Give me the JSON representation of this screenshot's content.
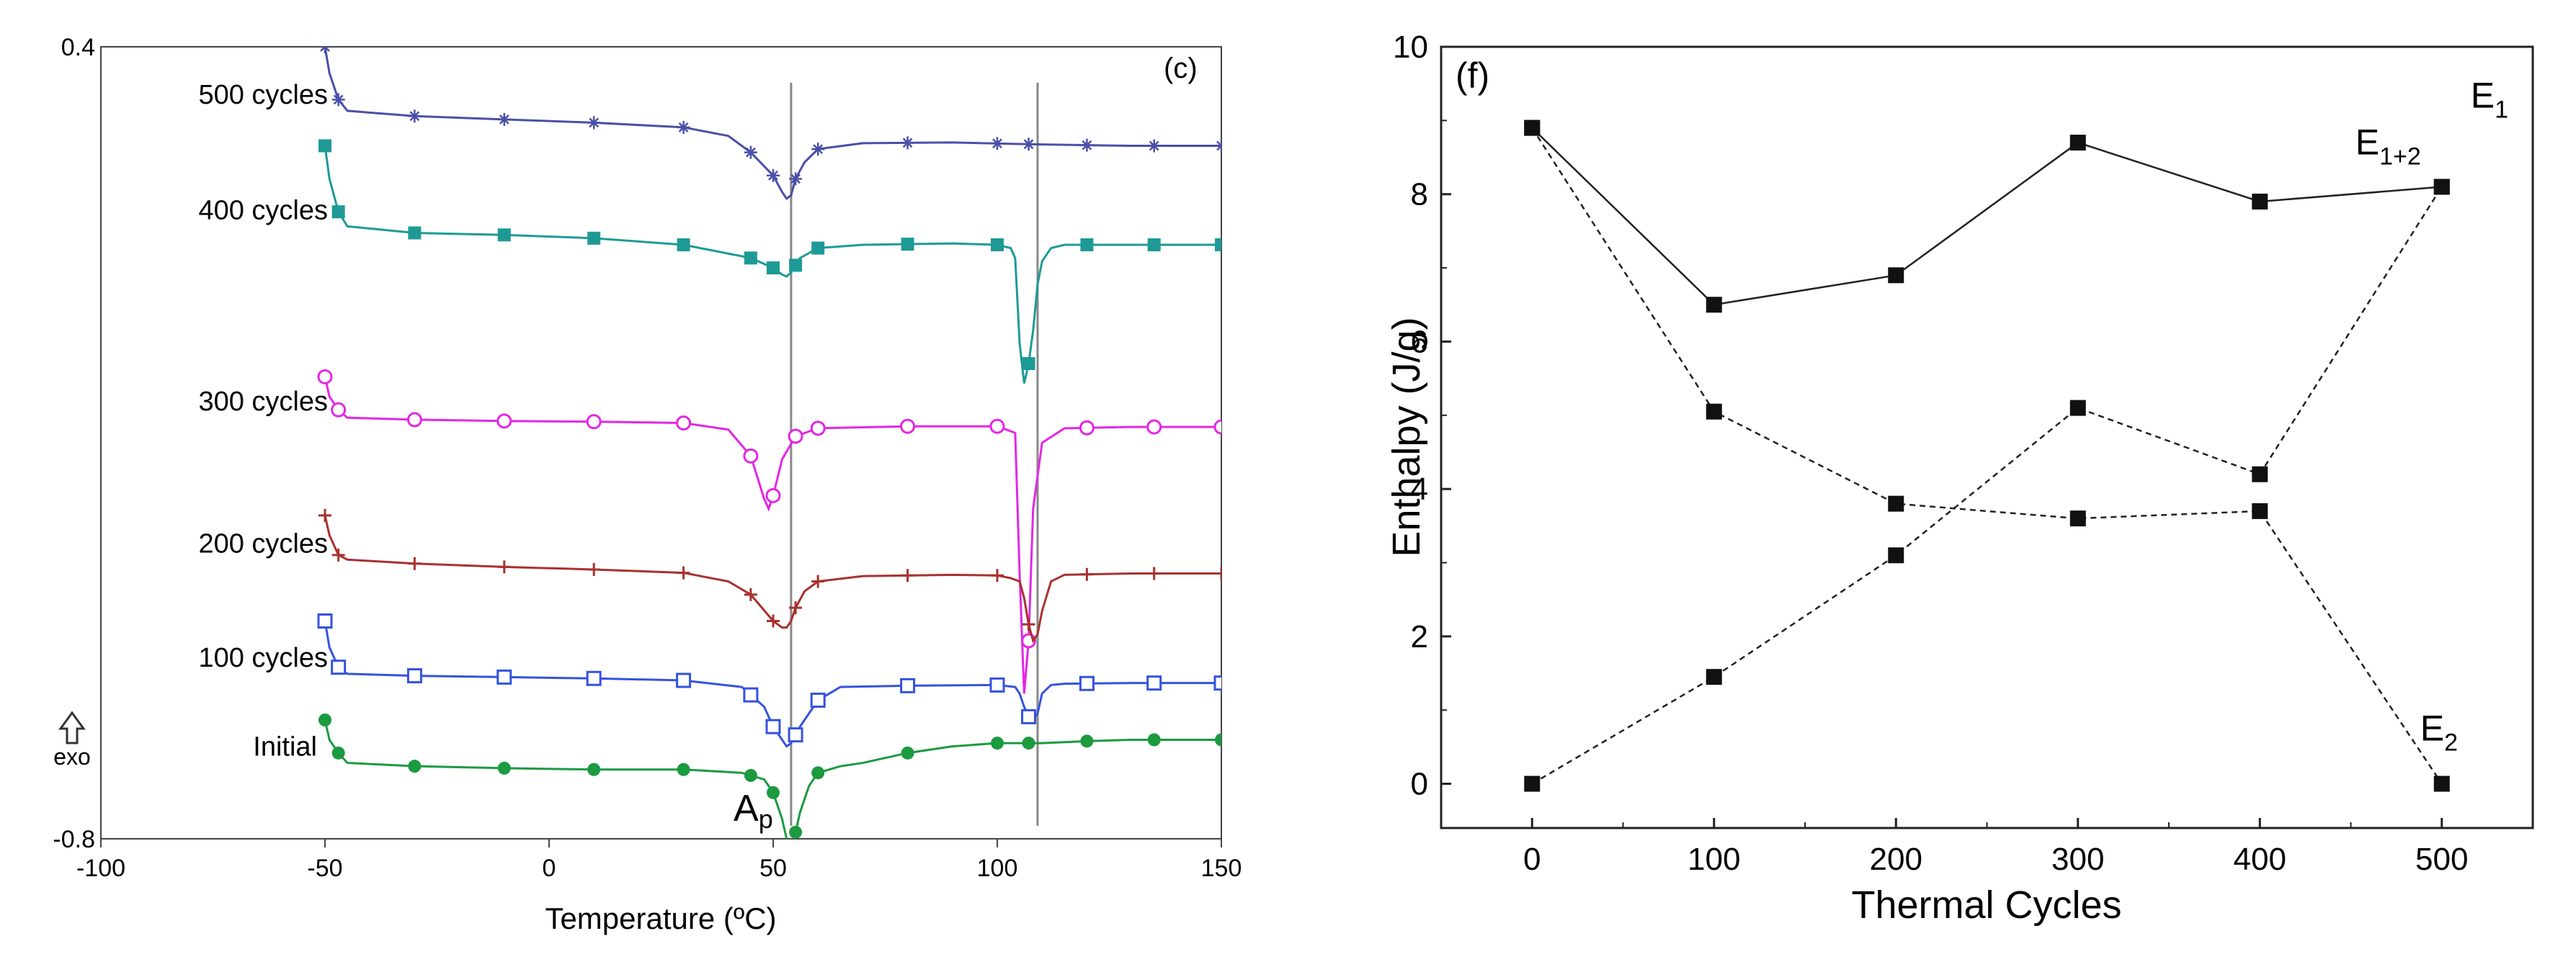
{
  "chart_data": [
    {
      "type": "line",
      "panel_label": "(c)",
      "xlabel": "Temperature (ºC)",
      "xlim": [
        -100,
        150
      ],
      "x_ticks": [
        "-100",
        "-50",
        "0",
        "50",
        "100",
        "150"
      ],
      "ylim": [
        -0.8,
        0.4
      ],
      "y_ticks": [
        "0.4",
        "-0.8"
      ],
      "exo_label": "exo",
      "peak_label": "A",
      "peak_sub": "p",
      "ref_lines_x": [
        54,
        109
      ],
      "series": [
        {
          "name": "500 cycles",
          "color": "#4a4fa8",
          "marker": "star",
          "x": [
            -50,
            -49,
            -47,
            -45,
            -30,
            -10,
            10,
            30,
            40,
            45,
            50,
            52,
            53,
            54,
            55,
            57,
            60,
            70,
            90,
            110,
            130,
            150
          ],
          "y": [
            0.4,
            0.36,
            0.32,
            0.303,
            0.295,
            0.29,
            0.285,
            0.278,
            0.265,
            0.24,
            0.205,
            0.18,
            0.17,
            0.175,
            0.2,
            0.225,
            0.245,
            0.254,
            0.255,
            0.252,
            0.25,
            0.25
          ]
        },
        {
          "name": "400 cycles",
          "color": "#1e9a96",
          "marker": "square-filled",
          "x": [
            -50,
            -49,
            -47,
            -45,
            -30,
            -10,
            10,
            30,
            45,
            50,
            52,
            53,
            54,
            56,
            60,
            70,
            90,
            100,
            103,
            104,
            105,
            106,
            107,
            108,
            109,
            110,
            112,
            115,
            130,
            150
          ],
          "y": [
            0.25,
            0.2,
            0.15,
            0.128,
            0.118,
            0.115,
            0.11,
            0.1,
            0.08,
            0.065,
            0.055,
            0.052,
            0.058,
            0.08,
            0.095,
            0.1,
            0.102,
            0.1,
            0.095,
            0.08,
            -0.05,
            -0.11,
            -0.08,
            -0.03,
            0.04,
            0.075,
            0.095,
            0.1,
            0.1,
            0.1
          ]
        },
        {
          "name": "300 cycles",
          "color": "#e327e3",
          "marker": "circle-open",
          "x": [
            -50,
            -49,
            -47,
            -45,
            -30,
            -10,
            10,
            30,
            40,
            45,
            48,
            49,
            50,
            52,
            55,
            60,
            80,
            100,
            104,
            105,
            106,
            107,
            108,
            110,
            115,
            130,
            150
          ],
          "y": [
            -0.1,
            -0.13,
            -0.15,
            -0.162,
            -0.165,
            -0.167,
            -0.168,
            -0.17,
            -0.18,
            -0.22,
            -0.285,
            -0.3,
            -0.28,
            -0.225,
            -0.19,
            -0.178,
            -0.175,
            -0.175,
            -0.185,
            -0.4,
            -0.58,
            -0.5,
            -0.3,
            -0.2,
            -0.178,
            -0.176,
            -0.176
          ]
        },
        {
          "name": "200 cycles",
          "color": "#a8312f",
          "marker": "cross",
          "x": [
            -50,
            -49,
            -47,
            -45,
            -30,
            -10,
            10,
            30,
            40,
            45,
            50,
            52,
            53,
            54,
            55,
            57,
            60,
            70,
            90,
            100,
            103,
            105,
            106,
            107,
            108,
            109,
            110,
            112,
            115,
            130,
            150
          ],
          "y": [
            -0.31,
            -0.34,
            -0.37,
            -0.377,
            -0.383,
            -0.388,
            -0.392,
            -0.397,
            -0.41,
            -0.43,
            -0.47,
            -0.48,
            -0.48,
            -0.47,
            -0.45,
            -0.425,
            -0.41,
            -0.402,
            -0.4,
            -0.401,
            -0.405,
            -0.41,
            -0.435,
            -0.475,
            -0.5,
            -0.49,
            -0.455,
            -0.41,
            -0.4,
            -0.398,
            -0.398
          ]
        },
        {
          "name": "100 cycles",
          "color": "#3552e0",
          "marker": "square-open",
          "x": [
            -50,
            -49,
            -47,
            -45,
            -30,
            -10,
            10,
            30,
            43,
            48,
            50,
            52,
            53,
            54,
            56,
            60,
            65,
            80,
            100,
            104,
            105,
            106,
            107,
            108,
            109,
            110,
            112,
            115,
            130,
            150
          ],
          "y": [
            -0.47,
            -0.51,
            -0.54,
            -0.55,
            -0.553,
            -0.555,
            -0.557,
            -0.56,
            -0.57,
            -0.6,
            -0.63,
            -0.65,
            -0.66,
            -0.655,
            -0.63,
            -0.59,
            -0.57,
            -0.568,
            -0.567,
            -0.57,
            -0.58,
            -0.6,
            -0.615,
            -0.62,
            -0.61,
            -0.58,
            -0.567,
            -0.565,
            -0.564,
            -0.564
          ]
        },
        {
          "name": "Initial",
          "color": "#1b9a40",
          "marker": "circle-filled",
          "x": [
            -50,
            -49,
            -47,
            -45,
            -30,
            -10,
            10,
            30,
            43,
            48,
            50,
            52,
            53,
            54,
            55,
            56,
            57,
            58,
            60,
            65,
            70,
            80,
            90,
            100,
            110,
            120,
            130,
            150
          ],
          "y": [
            -0.62,
            -0.65,
            -0.67,
            -0.685,
            -0.69,
            -0.693,
            -0.695,
            -0.695,
            -0.7,
            -0.71,
            -0.73,
            -0.77,
            -0.8,
            -0.81,
            -0.79,
            -0.76,
            -0.74,
            -0.72,
            -0.7,
            -0.69,
            -0.685,
            -0.67,
            -0.66,
            -0.655,
            -0.655,
            -0.652,
            -0.65,
            -0.65
          ]
        }
      ],
      "marker_x": [
        -50,
        -47,
        -30,
        -10,
        10,
        30,
        45,
        50,
        55,
        60,
        80,
        100,
        107,
        120,
        135,
        150
      ]
    },
    {
      "type": "line",
      "panel_label": "(f)",
      "xlabel": "Thermal Cycles",
      "ylabel": "Enthalpy (J/g)",
      "xlim": [
        -50,
        550
      ],
      "ylim": [
        -0.6,
        10
      ],
      "x_ticks": [
        0,
        100,
        200,
        300,
        400,
        500
      ],
      "y_ticks": [
        0,
        2,
        4,
        6,
        8,
        10
      ],
      "categories": [
        0,
        100,
        200,
        300,
        400,
        500
      ],
      "series": [
        {
          "name": "E",
          "sub": "1+2",
          "style": "solid",
          "values": [
            8.9,
            6.5,
            6.9,
            8.7,
            7.9,
            8.1
          ]
        },
        {
          "name": "E",
          "sub": "1",
          "style": "dashed",
          "values": [
            0.0,
            1.45,
            3.1,
            5.1,
            4.2,
            8.1
          ]
        },
        {
          "name": "E",
          "sub": "2",
          "style": "dashed",
          "values": [
            8.9,
            5.05,
            3.8,
            3.6,
            3.7,
            0.0
          ]
        }
      ]
    }
  ]
}
